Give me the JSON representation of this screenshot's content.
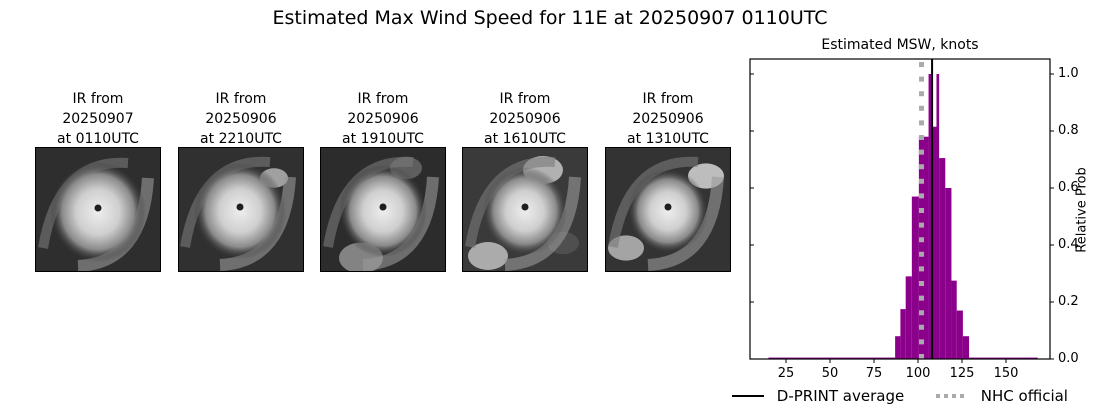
{
  "figure": {
    "title": "Estimated Max Wind Speed for 11E at 20250907 0110UTC"
  },
  "ir_panels": [
    {
      "line1": "IR from",
      "line2": "20250907",
      "line3": "at 0110UTC"
    },
    {
      "line1": "IR from",
      "line2": "20250906",
      "line3": "at 2210UTC"
    },
    {
      "line1": "IR from",
      "line2": "20250906",
      "line3": "at 1910UTC"
    },
    {
      "line1": "IR from",
      "line2": "20250906",
      "line3": "at 1610UTC"
    },
    {
      "line1": "IR from",
      "line2": "20250906",
      "line3": "at 1310UTC"
    }
  ],
  "chart_data": {
    "type": "bar",
    "title": "Estimated MSW, knots",
    "xlabel": "",
    "ylabel": "Relative Prob",
    "xlim": [
      5,
      175
    ],
    "ylim": [
      0,
      1.05
    ],
    "xticks": [
      25,
      50,
      75,
      100,
      125,
      150
    ],
    "yticks": [
      0.0,
      0.2,
      0.4,
      0.6,
      0.8,
      1.0
    ],
    "ytick_labels": [
      "0.0",
      "0.2",
      "0.4",
      "0.6",
      "0.8",
      "1.0"
    ],
    "y_axis_position": "right",
    "grid": false,
    "bar_color": "#8b008b",
    "bins": [
      {
        "x0": 15,
        "x1": 87,
        "value": 0.005
      },
      {
        "x0": 87,
        "x1": 90,
        "value": 0.08
      },
      {
        "x0": 90,
        "x1": 93,
        "value": 0.175
      },
      {
        "x0": 93,
        "x1": 96.5,
        "value": 0.29
      },
      {
        "x0": 96.5,
        "x1": 100.5,
        "value": 0.57
      },
      {
        "x0": 100.5,
        "x1": 106,
        "value": 0.78
      },
      {
        "x0": 106,
        "x1": 107.5,
        "value": 1.0
      },
      {
        "x0": 107.5,
        "x1": 110.5,
        "value": 0.815
      },
      {
        "x0": 110.5,
        "x1": 112,
        "value": 1.0
      },
      {
        "x0": 112,
        "x1": 115.5,
        "value": 0.705
      },
      {
        "x0": 115.5,
        "x1": 119,
        "value": 0.6
      },
      {
        "x0": 119,
        "x1": 122,
        "value": 0.275
      },
      {
        "x0": 122,
        "x1": 125.5,
        "value": 0.17
      },
      {
        "x0": 125.5,
        "x1": 129,
        "value": 0.08
      },
      {
        "x0": 129,
        "x1": 168,
        "value": 0.005
      }
    ],
    "lines": [
      {
        "name": "D-PRINT average",
        "x": 108,
        "style": "solid",
        "color": "#000000"
      },
      {
        "name": "NHC official",
        "x": 102,
        "style": "dotted",
        "color": "#aaaaaa"
      }
    ],
    "legend_position": "below"
  },
  "legend": {
    "dprint_label": "D-PRINT average",
    "nhc_label": "NHC official"
  }
}
